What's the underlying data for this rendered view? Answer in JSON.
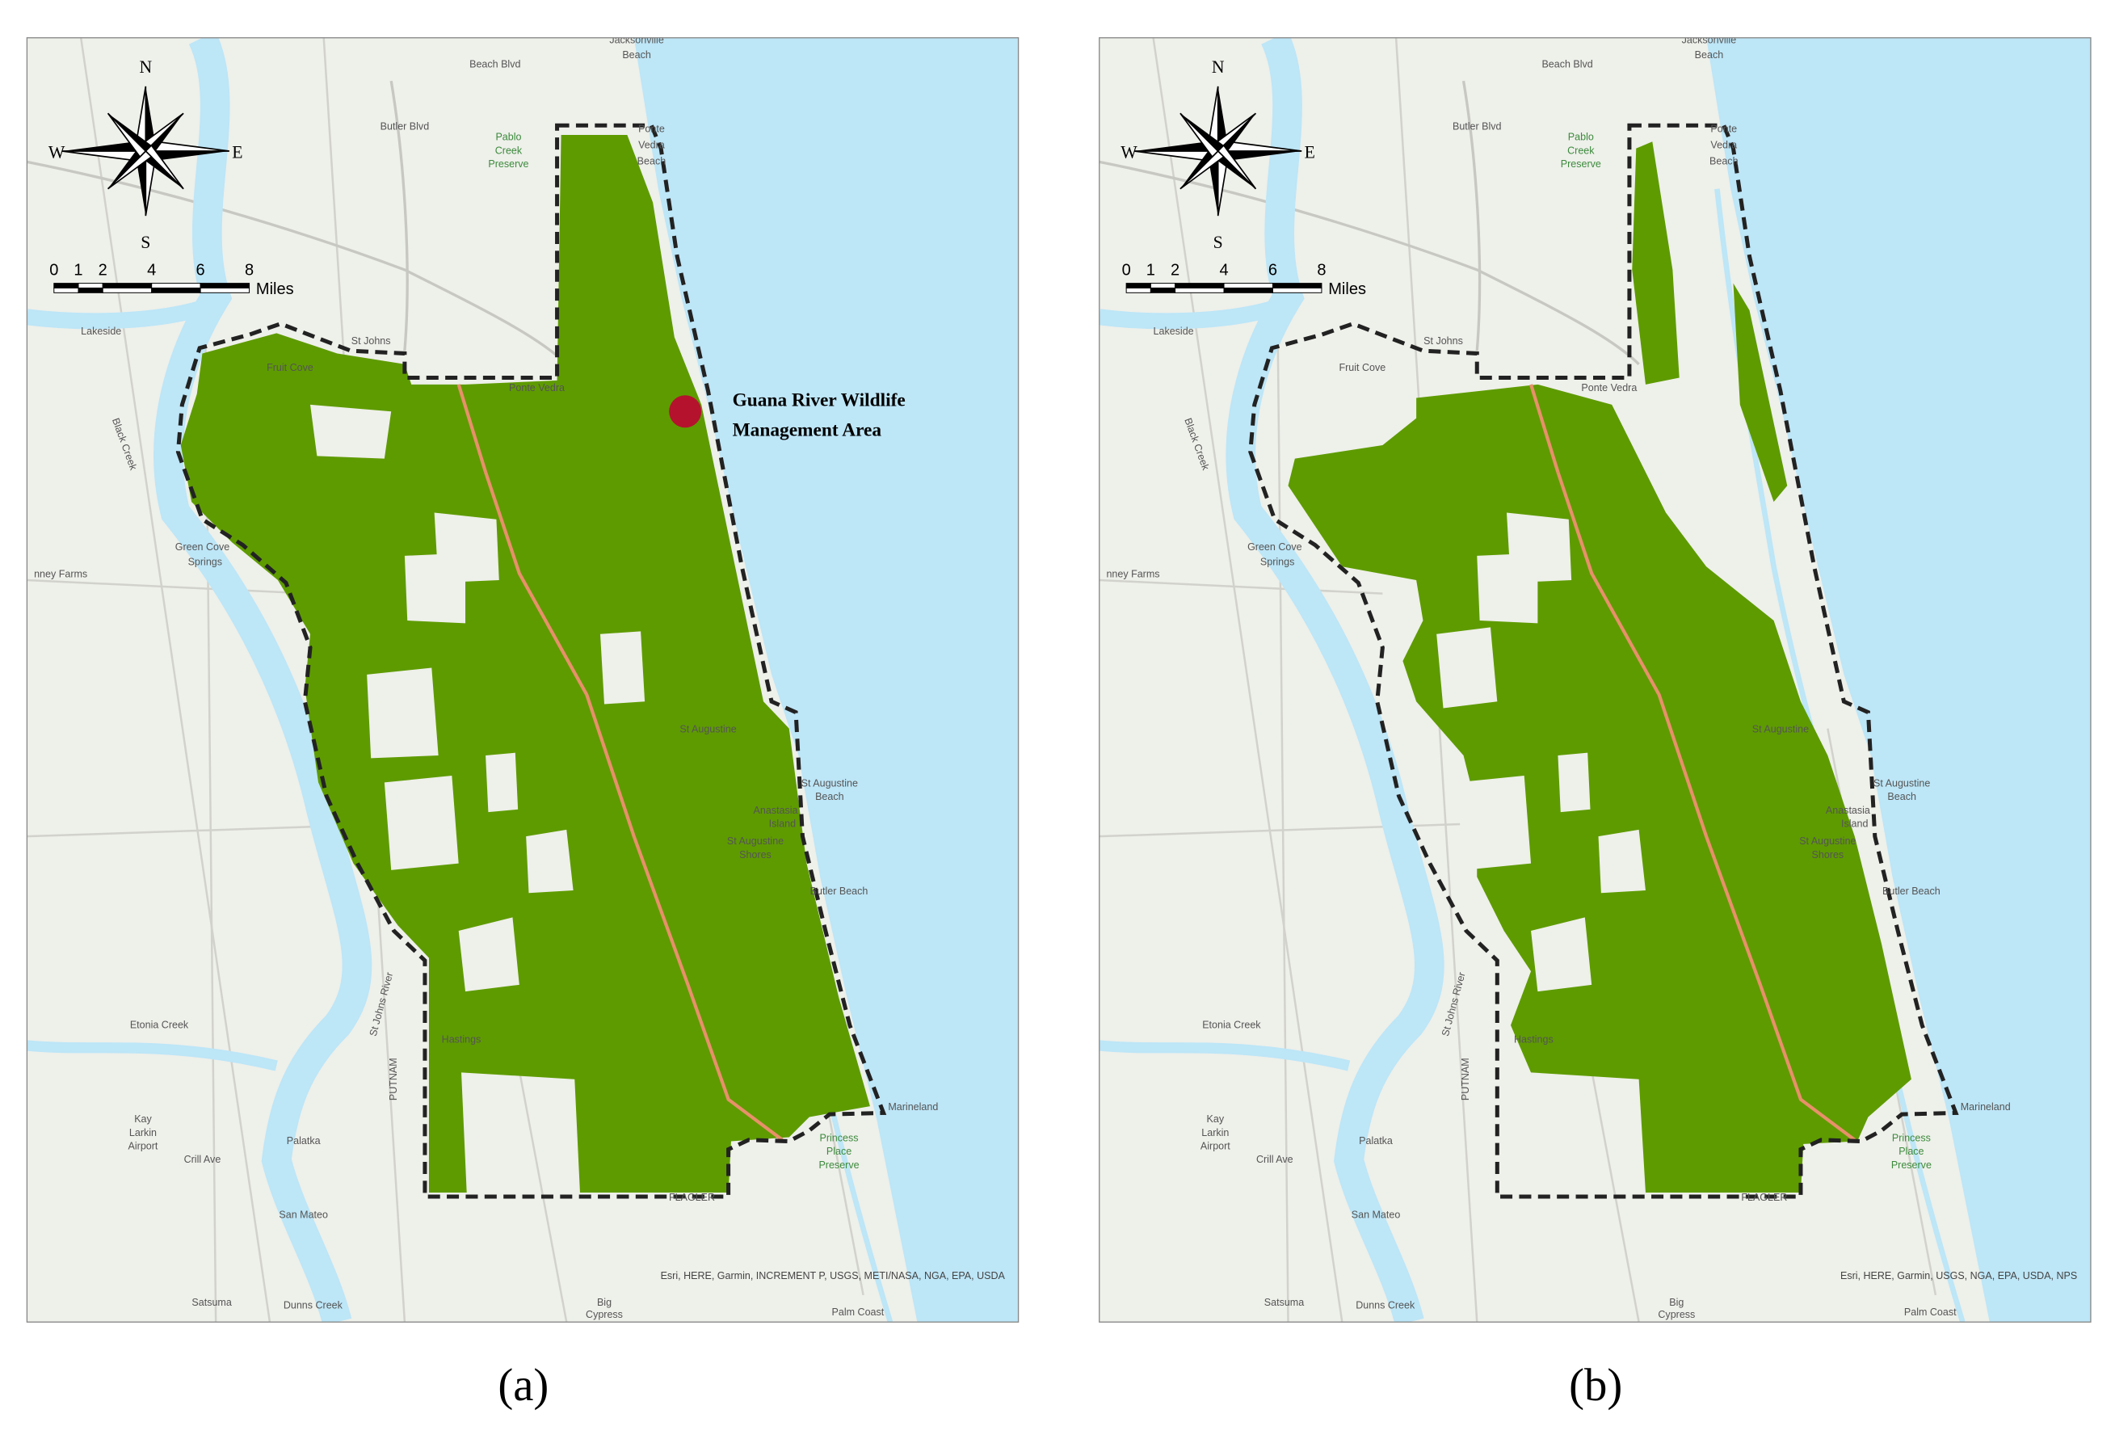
{
  "panels": [
    {
      "caption": "(a)",
      "attribution": "Esri, HERE, Garmin, INCREMENT P, USGS, METI/NASA, NGA, EPA, USDA",
      "annotation": [
        "Guana River Wildlife",
        "Management Area"
      ]
    },
    {
      "caption": "(b)",
      "attribution": "Esri, HERE, Garmin, USGS, NGA, EPA, USDA, NPS"
    }
  ],
  "compass": {
    "n": "N",
    "e": "E",
    "s": "S",
    "w": "W"
  },
  "scale_bar": {
    "ticks": [
      0,
      1,
      2,
      4,
      6,
      8
    ],
    "unit": "Miles"
  },
  "places": [
    "Jacksonville",
    "Beach",
    "Beach Blvd",
    "Butler Blvd",
    "Pablo",
    "Creek",
    "Preserve",
    "Ponte",
    "Vedra",
    "Beach",
    "Lakeside",
    "St Johns",
    "Fruit Cove",
    "Ponte Vedra",
    "Green Cove",
    "Springs",
    "nney Farms",
    "St Augustine",
    "St Augustine",
    "Beach",
    "Anastasia",
    "Island",
    "St Augustine",
    "Shores",
    "Butler Beach",
    "Hastings",
    "Etonia Creek",
    "PUTNAM",
    "Kay",
    "Larkin",
    "Airport",
    "Palatka",
    "Crill Ave",
    "San Mateo",
    "FLAGLER",
    "Marineland",
    "Princess",
    "Place",
    "Preserve",
    "Satsuma",
    "Dunns Creek",
    "Big",
    "Cypress",
    "Palm Coast",
    "St Johns River",
    "Black Creek"
  ]
}
